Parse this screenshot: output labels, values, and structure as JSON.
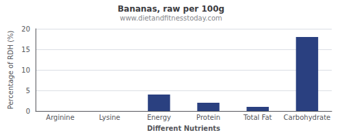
{
  "chart_data": {
    "type": "bar",
    "title": "Bananas, raw per 100g",
    "subtitle": "www.dietandfitnesstoday.com",
    "xlabel": "Different Nutrients",
    "ylabel": "Percentage of RDH (%)",
    "categories": [
      "Arginine",
      "Lysine",
      "Energy",
      "Protein",
      "Total Fat",
      "Carbohydrate"
    ],
    "values": [
      0.0,
      0.0,
      4.0,
      2.0,
      1.0,
      18.0
    ],
    "color": "#2a4080",
    "ylim": [
      0,
      20
    ],
    "yticks": [
      0,
      5,
      10,
      15,
      20
    ],
    "grid": true
  }
}
